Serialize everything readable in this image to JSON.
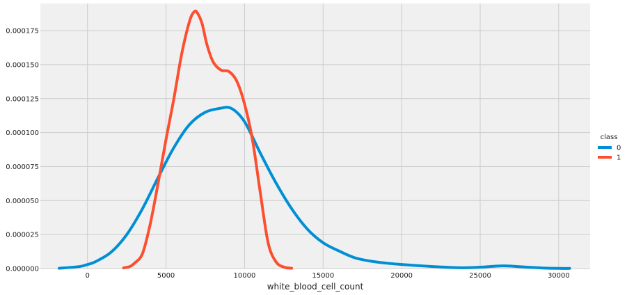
{
  "chart_data": {
    "type": "line",
    "xlabel": "white_blood_cell_count",
    "ylabel": "",
    "xlim": [
      -3000,
      32000
    ],
    "ylim": [
      0,
      0.000195
    ],
    "xticks": [
      0,
      5000,
      10000,
      15000,
      20000,
      25000,
      30000
    ],
    "xtick_labels": [
      "0",
      "5000",
      "10000",
      "15000",
      "20000",
      "25000",
      "30000"
    ],
    "yticks": [
      0,
      2.5e-05,
      5e-05,
      7.5e-05,
      0.0001,
      0.000125,
      0.00015,
      0.000175
    ],
    "ytick_labels": [
      "0.000000",
      "0.000025",
      "0.000050",
      "0.000075",
      "0.000100",
      "0.000125",
      "0.000150",
      "0.000175"
    ],
    "grid": true,
    "legend": {
      "title": "class",
      "placement": "right"
    },
    "series": [
      {
        "name": "0",
        "color": "#008fd5",
        "x": [
          -1800,
          -500,
          0,
          500,
          1500,
          2500,
          3500,
          4500,
          5500,
          6500,
          7500,
          8500,
          9000,
          9500,
          10000,
          10500,
          11000,
          12000,
          13000,
          14000,
          15000,
          16000,
          17000,
          18000,
          19000,
          20000,
          21000,
          22000,
          23000,
          24000,
          25000,
          26000,
          26500,
          27000,
          28000,
          29000,
          30000,
          30700
        ],
        "y": [
          2e-07,
          1.5e-06,
          3e-06,
          5e-06,
          1.2e-05,
          2.5e-05,
          4.4e-05,
          6.7e-05,
          8.9e-05,
          0.000106,
          0.000115,
          0.000118,
          0.0001185,
          0.000115,
          0.000108,
          9.7e-05,
          8.5e-05,
          6.3e-05,
          4.4e-05,
          2.9e-05,
          1.9e-05,
          1.3e-05,
          8e-06,
          5.5e-06,
          4e-06,
          3e-06,
          2.2e-06,
          1.5e-06,
          9e-07,
          6e-07,
          1e-06,
          1.8e-06,
          2e-06,
          1.8e-06,
          1e-06,
          4e-07,
          1e-07,
          1e-07
        ]
      },
      {
        "name": "1",
        "color": "#fc4f30",
        "x": [
          2300,
          2700,
          3000,
          3500,
          4000,
          4500,
          5000,
          5500,
          6000,
          6500,
          6800,
          7000,
          7300,
          7600,
          8000,
          8500,
          9000,
          9500,
          10000,
          10500,
          11000,
          11500,
          12000,
          12500,
          13000
        ],
        "y": [
          5e-07,
          1.5e-06,
          4e-06,
          1.1e-05,
          3.3e-05,
          6.3e-05,
          9.5e-05,
          0.000125,
          0.000158,
          0.000182,
          0.000189,
          0.000188,
          0.00018,
          0.000165,
          0.000152,
          0.000146,
          0.000145,
          0.000138,
          0.000121,
          9.5e-05,
          5.6e-05,
          1.9e-05,
          5e-06,
          1.1e-06,
          2e-07
        ]
      }
    ]
  }
}
